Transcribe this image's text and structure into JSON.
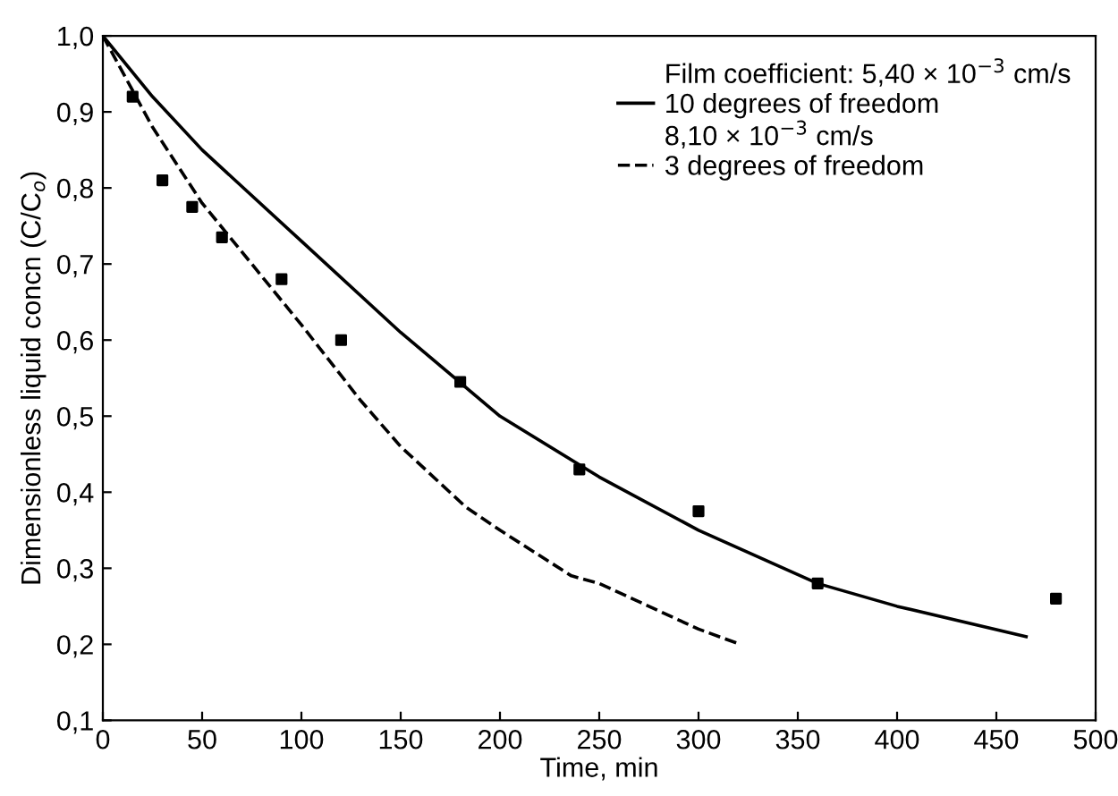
{
  "chart_data": {
    "type": "line",
    "xlabel": "Time, min",
    "ylabel": "Dimensionless liquid concn (C/C$_{o}$)",
    "annotations": [
      "Film coefficient: 5,40 × 10$^{−3}$ cm/s",
      "8,10 × 10$^{−3}$ cm/s"
    ],
    "series": [
      {
        "name": "10 degrees of freedom",
        "color": "#000000",
        "line_style": "solid",
        "marker": "none",
        "x": [
          0,
          25,
          50,
          100,
          150,
          200,
          250,
          300,
          360,
          400,
          465
        ],
        "values": [
          1.0,
          0.92,
          0.85,
          0.73,
          0.61,
          0.5,
          0.42,
          0.35,
          0.28,
          0.25,
          0.21
        ]
      },
      {
        "name": "3 degrees of freedom",
        "color": "#000000",
        "line_style": "dashed",
        "marker": "none",
        "x": [
          0,
          25,
          50,
          100,
          130,
          150,
          183,
          200,
          236,
          250,
          300,
          321
        ],
        "values": [
          1.0,
          0.88,
          0.78,
          0.62,
          0.52,
          0.46,
          0.38,
          0.35,
          0.29,
          0.28,
          0.22,
          0.2
        ]
      },
      {
        "type": "scatter",
        "color": "#000000",
        "marker": "square",
        "x": [
          15,
          30,
          45,
          60,
          90,
          120,
          180,
          240,
          300,
          360,
          480
        ],
        "values": [
          0.92,
          0.81,
          0.775,
          0.735,
          0.68,
          0.6,
          0.545,
          0.43,
          0.375,
          0.28,
          0.26
        ]
      }
    ],
    "xlim": [
      0,
      500
    ],
    "xticks": [
      0,
      50,
      100,
      150,
      200,
      250,
      300,
      350,
      400,
      450,
      500
    ],
    "ylim": [
      0.1,
      1.0
    ],
    "yticks": [
      {
        "value": 0.1,
        "label": "0,1"
      },
      {
        "value": 0.2,
        "label": "0,2"
      },
      {
        "value": 0.3,
        "label": "0,3"
      },
      {
        "value": 0.4,
        "label": "0,4"
      },
      {
        "value": 0.5,
        "label": "0,5"
      },
      {
        "value": 0.6,
        "label": "0,6"
      },
      {
        "value": 0.7,
        "label": "0,7"
      },
      {
        "value": 0.8,
        "label": "0,8"
      },
      {
        "value": 0.9,
        "label": "0,9"
      },
      {
        "value": 1.0,
        "label": "1,0"
      }
    ],
    "grid": false,
    "legend": "top right"
  }
}
